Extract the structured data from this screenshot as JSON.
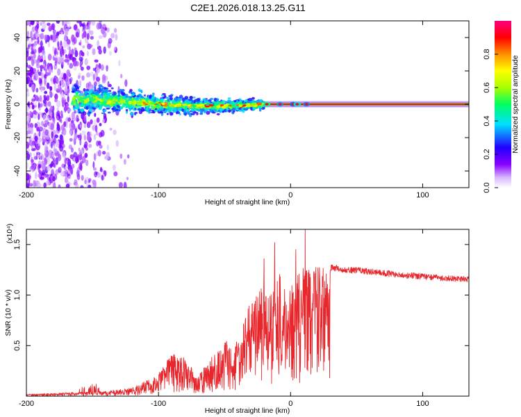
{
  "title": "C2E1.2026.018.13.25.G11",
  "chart_data": [
    {
      "type": "heatmap",
      "xlabel": "Height of straight line (km)",
      "ylabel": "Frequency (Hz)",
      "xlim": [
        -200,
        135
      ],
      "ylim": [
        -50,
        50
      ],
      "x_ticks": [
        -200,
        -100,
        0,
        100
      ],
      "y_ticks": [
        -40,
        -20,
        0,
        20,
        40
      ],
      "colorbar": {
        "label": "Normalized spectral amplitude",
        "range": [
          0.0,
          1.0
        ],
        "ticks": [
          0.0,
          0.2,
          0.4,
          0.6,
          0.8
        ],
        "colormap": [
          "#ffffff",
          "#d8b8ff",
          "#8800ff",
          "#2200ff",
          "#00e0ff",
          "#00ff60",
          "#a8ff00",
          "#ffff00",
          "#ff9000",
          "#ff0000",
          "#ff0080"
        ]
      },
      "features": [
        {
          "name": "noise",
          "x_range": [
            -200,
            -120
          ],
          "freq_range": [
            -50,
            50
          ],
          "amplitude": 0.1
        },
        {
          "name": "band",
          "x_range": [
            -165,
            -20
          ],
          "freq_center": 3,
          "freq_halfwidth": 6,
          "amplitude": 0.3
        },
        {
          "name": "tone",
          "x_range": [
            -20,
            135
          ],
          "freq_center": 0,
          "amplitude": 0.95
        }
      ]
    },
    {
      "type": "line",
      "xlabel": "Height of straight line (km)",
      "ylabel": "SNR (10 * v/v)",
      "y_scale_label": "(x10⁴)",
      "xlim": [
        -200,
        135
      ],
      "ylim": [
        0,
        1.65
      ],
      "x_ticks": [
        -200,
        -100,
        0,
        100
      ],
      "y_ticks": [
        0.5,
        1.0,
        1.5
      ],
      "series": [
        {
          "name": "SNR",
          "color": "#e8262b",
          "envelope_x": [
            -200,
            -160,
            -140,
            -120,
            -100,
            -90,
            -80,
            -70,
            -60,
            -50,
            -40,
            -30,
            -20,
            -15,
            -10,
            -5,
            0,
            5,
            10,
            15,
            20,
            30,
            40,
            60,
            80,
            100,
            120,
            135
          ],
          "envelope_y": [
            0.02,
            0.04,
            0.05,
            0.08,
            0.22,
            0.42,
            0.38,
            0.2,
            0.38,
            0.55,
            0.55,
            0.98,
            1.12,
            1.0,
            1.32,
            1.05,
            1.12,
            1.22,
            1.35,
            1.25,
            1.28,
            1.28,
            1.26,
            1.24,
            1.21,
            1.19,
            1.17,
            1.16
          ],
          "spikes": [
            {
              "x": -20,
              "y": 1.36
            },
            {
              "x": -12,
              "y": 1.52
            },
            {
              "x": 4,
              "y": 1.45
            },
            {
              "x": 11,
              "y": 1.66
            },
            {
              "x": 13,
              "y": 0.25
            }
          ]
        }
      ]
    }
  ]
}
